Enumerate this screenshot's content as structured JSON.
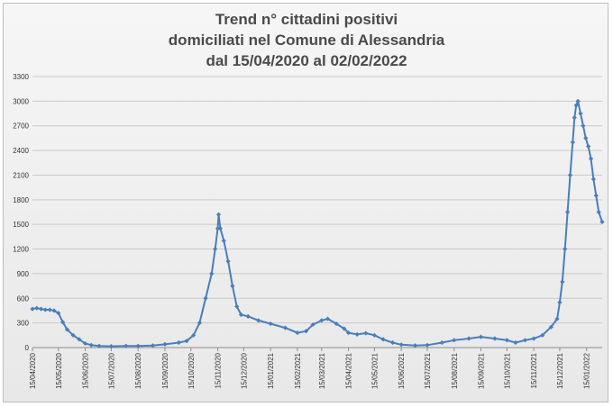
{
  "chart_data": {
    "type": "line",
    "title_lines": [
      "Trend n° cittadini positivi",
      "domiciliati nel Comune di Alessandria",
      "dal 15/04/2020 al 02/02/2022"
    ],
    "xlabel": "",
    "ylabel": "",
    "ylim": [
      0,
      3300
    ],
    "yticks": [
      0,
      300,
      600,
      900,
      1200,
      1500,
      1800,
      2100,
      2400,
      2700,
      3000,
      3300
    ],
    "grid": true,
    "legend": "none",
    "x_start": "15/04/2020",
    "x_end": "02/02/2022",
    "x_tick_labels": [
      "15/04/2020",
      "15/05/2020",
      "15/06/2020",
      "15/07/2020",
      "15/08/2020",
      "15/09/2020",
      "15/10/2020",
      "15/11/2020",
      "15/12/2020",
      "15/01/2021",
      "15/02/2021",
      "15/03/2021",
      "15/04/2021",
      "15/05/2021",
      "15/06/2021",
      "15/07/2021",
      "15/08/2021",
      "15/09/2021",
      "15/10/2021",
      "15/11/2021",
      "15/12/2021",
      "15/01/2022"
    ],
    "series": [
      {
        "color": "#4a7ebb",
        "marker": "diamond",
        "points": [
          [
            "15/04/2020",
            470
          ],
          [
            "20/04/2020",
            480
          ],
          [
            "25/04/2020",
            470
          ],
          [
            "30/04/2020",
            460
          ],
          [
            "05/05/2020",
            460
          ],
          [
            "10/05/2020",
            450
          ],
          [
            "15/05/2020",
            420
          ],
          [
            "20/05/2020",
            310
          ],
          [
            "25/05/2020",
            220
          ],
          [
            "01/06/2020",
            150
          ],
          [
            "08/06/2020",
            100
          ],
          [
            "15/06/2020",
            50
          ],
          [
            "22/06/2020",
            30
          ],
          [
            "01/07/2020",
            20
          ],
          [
            "15/07/2020",
            15
          ],
          [
            "01/08/2020",
            20
          ],
          [
            "15/08/2020",
            20
          ],
          [
            "01/09/2020",
            25
          ],
          [
            "15/09/2020",
            40
          ],
          [
            "01/10/2020",
            60
          ],
          [
            "10/10/2020",
            80
          ],
          [
            "18/10/2020",
            150
          ],
          [
            "25/10/2020",
            300
          ],
          [
            "01/11/2020",
            600
          ],
          [
            "08/11/2020",
            900
          ],
          [
            "12/11/2020",
            1200
          ],
          [
            "15/11/2020",
            1450
          ],
          [
            "16/11/2020",
            1620
          ],
          [
            "18/11/2020",
            1450
          ],
          [
            "22/11/2020",
            1300
          ],
          [
            "27/11/2020",
            1050
          ],
          [
            "02/12/2020",
            750
          ],
          [
            "07/12/2020",
            500
          ],
          [
            "12/12/2020",
            400
          ],
          [
            "20/12/2020",
            380
          ],
          [
            "01/01/2021",
            330
          ],
          [
            "15/01/2021",
            290
          ],
          [
            "01/02/2021",
            240
          ],
          [
            "15/02/2021",
            180
          ],
          [
            "25/02/2021",
            200
          ],
          [
            "05/03/2021",
            280
          ],
          [
            "15/03/2021",
            330
          ],
          [
            "22/03/2021",
            350
          ],
          [
            "01/04/2021",
            290
          ],
          [
            "10/04/2021",
            230
          ],
          [
            "15/04/2021",
            180
          ],
          [
            "25/04/2021",
            160
          ],
          [
            "05/05/2021",
            175
          ],
          [
            "15/05/2021",
            150
          ],
          [
            "25/05/2021",
            100
          ],
          [
            "05/06/2021",
            60
          ],
          [
            "15/06/2021",
            35
          ],
          [
            "01/07/2021",
            25
          ],
          [
            "15/07/2021",
            30
          ],
          [
            "01/08/2021",
            60
          ],
          [
            "15/08/2021",
            90
          ],
          [
            "01/09/2021",
            110
          ],
          [
            "15/09/2021",
            130
          ],
          [
            "01/10/2021",
            110
          ],
          [
            "15/10/2021",
            90
          ],
          [
            "25/10/2021",
            60
          ],
          [
            "05/11/2021",
            90
          ],
          [
            "15/11/2021",
            110
          ],
          [
            "25/11/2021",
            150
          ],
          [
            "05/12/2021",
            250
          ],
          [
            "12/12/2021",
            350
          ],
          [
            "15/12/2021",
            550
          ],
          [
            "18/12/2021",
            800
          ],
          [
            "21/12/2021",
            1200
          ],
          [
            "24/12/2021",
            1650
          ],
          [
            "27/12/2021",
            2100
          ],
          [
            "30/12/2021",
            2500
          ],
          [
            "01/01/2022",
            2800
          ],
          [
            "03/01/2022",
            2950
          ],
          [
            "05/01/2022",
            3000
          ],
          [
            "08/01/2022",
            2850
          ],
          [
            "11/01/2022",
            2700
          ],
          [
            "14/01/2022",
            2550
          ],
          [
            "17/01/2022",
            2450
          ],
          [
            "20/01/2022",
            2300
          ],
          [
            "23/01/2022",
            2050
          ],
          [
            "26/01/2022",
            1850
          ],
          [
            "29/01/2022",
            1650
          ],
          [
            "02/02/2022",
            1530
          ]
        ]
      }
    ]
  }
}
